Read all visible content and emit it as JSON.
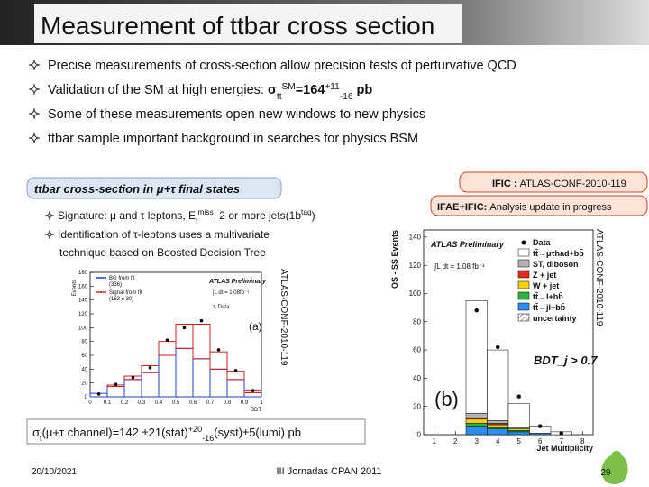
{
  "header": {
    "title": "Measurement of ttbar cross section"
  },
  "bullets": [
    {
      "parts": [
        {
          "t": "Precise measurements of cross-section allow precision tests of perturvative QCD"
        }
      ]
    },
    {
      "parts": [
        {
          "t": "Validation of the SM at high energies: "
        },
        {
          "b": "σ"
        },
        {
          "sub": "tt"
        },
        {
          "sup": "SM"
        },
        {
          "b": "=164"
        },
        {
          "sup": "+11"
        },
        {
          "sub": "-16"
        },
        {
          "b": " pb"
        }
      ]
    },
    {
      "parts": [
        {
          "t": "Some of these measurements open new windows to new physics"
        }
      ]
    },
    {
      "parts": [
        {
          "t": "ttbar sample important background in searches for physics BSM"
        }
      ]
    }
  ],
  "section": {
    "label": "ttbar cross-section in μ+τ final states",
    "sub_bullets": [
      {
        "parts": [
          {
            "t": "Signature: μ and τ leptons, E"
          },
          {
            "sub": "t"
          },
          {
            "sup": "miss"
          },
          {
            "t": ", 2 or more jets(1b"
          },
          {
            "sup": "tag"
          },
          {
            "t": ")"
          }
        ]
      },
      {
        "parts": [
          {
            "t": "Identification of τ-leptons uses a multivariate"
          }
        ]
      },
      {
        "parts": [
          {
            "t": "technique based on Boosted Decision Tree"
          }
        ]
      }
    ],
    "result": {
      "parts": [
        {
          "t": "σ"
        },
        {
          "sub": "t"
        },
        {
          "t": "(μ+τ channel)=142 ±21(stat)"
        },
        {
          "sup": "+20"
        },
        {
          "sub": "-16"
        },
        {
          "t": "(syst)±5(lumi) pb"
        }
      ]
    }
  },
  "tags": [
    {
      "parts": [
        {
          "b": "IFIC : "
        },
        {
          "t": "ATLAS-CONF-2010-119"
        }
      ]
    },
    {
      "parts": [
        {
          "b": "IFAE+IFIC: "
        },
        {
          "t": "Analysis update in progress"
        }
      ]
    }
  ],
  "figures": [
    {
      "type": "histogram",
      "panel_label": "(a)",
      "experiment": "ATLAS Preliminary",
      "luminosity": "∫L dt = 1.08fb⁻¹",
      "channel": "τ, Data",
      "side_label": "ATLAS-CONF-2010-119",
      "x_label": "BDT",
      "y_label": "Events",
      "bins": [
        0,
        0.1,
        0.2,
        0.3,
        0.4,
        0.5,
        0.6,
        0.7,
        0.8,
        0.9,
        1
      ],
      "xlim": [
        0,
        1
      ],
      "xticks": [
        0,
        0.1,
        0.2,
        0.3,
        0.4,
        0.5,
        0.6,
        0.7,
        0.8,
        0.9,
        1
      ],
      "ylim": [
        0,
        180
      ],
      "yticks": [
        0,
        20,
        40,
        60,
        80,
        100,
        120,
        140,
        160,
        180
      ],
      "series": [
        {
          "name": "BG from fit",
          "count_label": "(336)",
          "color": "#1f3fd0",
          "values": [
            5,
            15,
            25,
            35,
            60,
            70,
            55,
            40,
            25,
            6
          ]
        },
        {
          "name": "Signal from fit",
          "count_label": "(163 ± 30)",
          "color": "#d01f1f",
          "values": [
            0,
            2,
            5,
            10,
            20,
            35,
            50,
            25,
            12,
            4
          ]
        }
      ],
      "data_values": [
        4,
        18,
        28,
        42,
        82,
        100,
        110,
        68,
        38,
        9
      ]
    },
    {
      "type": "stacked-histogram",
      "panel_label": "(b)",
      "experiment": "ATLAS Preliminary",
      "luminosity": "∫L dt = 1.08 fb⁻¹",
      "cut_label": "BDT_j > 0.7",
      "side_label": "ATLAS-CONF-2010-119",
      "x_label": "Jet Multiplicity",
      "y_label": "OS - SS Events",
      "bins": [
        2.5,
        3.5,
        4.5,
        5.5,
        6.5,
        7.5
      ],
      "xlim": [
        0.5,
        8.5
      ],
      "xticks": [
        1,
        2,
        3,
        4,
        5,
        6,
        7,
        8
      ],
      "ylim": [
        0,
        145
      ],
      "yticks": [
        0,
        20,
        40,
        60,
        80,
        100,
        120,
        140
      ],
      "data_name": "Data",
      "data_values": [
        88,
        62,
        27,
        6,
        1
      ],
      "uncertainty_name": "uncertainty",
      "series": [
        {
          "name": "tt̄→μτhad+bb̄",
          "color": "#ffffff",
          "values": [
            80,
            50,
            17,
            5,
            2
          ]
        },
        {
          "name": "ST, diboson",
          "color": "#b4b4b4",
          "values": [
            3,
            2,
            1,
            0,
            0
          ]
        },
        {
          "name": "Z + jet",
          "color": "#e8281e",
          "values": [
            1,
            1,
            0,
            0,
            0
          ]
        },
        {
          "name": "W + jet",
          "color": "#f5d20a",
          "values": [
            3,
            2,
            1,
            0,
            0
          ]
        },
        {
          "name": "tt̄→l+bb̄",
          "color": "#2fb43c",
          "values": [
            2,
            1,
            1,
            0,
            0
          ]
        },
        {
          "name": "tt̄→jl+bb̄",
          "color": "#2a8ff0",
          "values": [
            6,
            4,
            2,
            1,
            0
          ]
        }
      ]
    }
  ],
  "footer": {
    "date": "20/10/2021",
    "event": "III Jornadas CPAN 2011",
    "page": "29"
  }
}
